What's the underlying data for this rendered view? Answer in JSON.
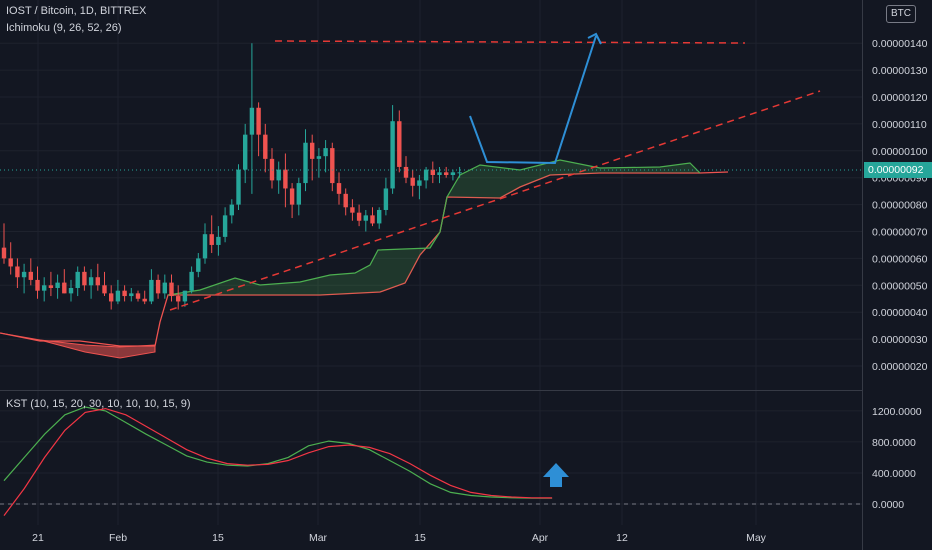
{
  "header": {
    "title": "IOST / Bitcoin, 1D, BITTREX",
    "indicator": "Ichimoku (9, 26, 52, 26)",
    "kst_label": "KST (10, 15, 20, 30, 10, 10, 10, 15, 9)",
    "currency_badge": "BTC",
    "last_price": "0.00000092"
  },
  "colors": {
    "background": "#131722",
    "up": "#26a69a",
    "down": "#ef5350",
    "kst": "#4caf50",
    "signal": "#f23645",
    "drawing_red": "#e53935",
    "drawing_blue": "#2e8fd6"
  },
  "chart_data": [
    {
      "type": "candlestick",
      "title": "IOST / Bitcoin, 1D, BITTREX",
      "ylim": [
        1e-07,
        1.5e-07
      ],
      "y_ticks": [
        "0.00000020",
        "0.00000030",
        "0.00000040",
        "0.00000050",
        "0.00000060",
        "0.00000070",
        "0.00000080",
        "0.00000090",
        "0.00000100",
        "0.00000110",
        "0.00000120",
        "0.00000130",
        "0.00000140"
      ],
      "x_ticks": [
        "21",
        "Feb",
        "15",
        "Mar",
        "15",
        "Apr",
        "12",
        "May"
      ],
      "ohlc": [
        [
          64,
          73,
          58,
          60
        ],
        [
          60,
          66,
          54,
          57
        ],
        [
          57,
          60,
          49,
          53
        ],
        [
          53,
          58,
          47,
          55
        ],
        [
          55,
          60,
          50,
          52
        ],
        [
          52,
          57,
          45,
          48
        ],
        [
          48,
          53,
          44,
          50
        ],
        [
          50,
          55,
          46,
          49
        ],
        [
          49,
          54,
          45,
          51
        ],
        [
          51,
          56,
          47,
          47
        ],
        [
          47,
          52,
          44,
          49
        ],
        [
          49,
          57,
          46,
          55
        ],
        [
          55,
          57,
          48,
          50
        ],
        [
          50,
          56,
          45,
          53
        ],
        [
          53,
          58,
          48,
          50
        ],
        [
          50,
          55,
          46,
          47
        ],
        [
          47,
          50,
          41,
          44
        ],
        [
          44,
          52,
          43,
          48
        ],
        [
          48,
          50,
          44,
          46
        ],
        [
          46,
          49,
          44,
          47
        ],
        [
          47,
          48,
          44,
          45
        ],
        [
          45,
          48,
          43,
          44
        ],
        [
          44,
          56,
          43,
          52
        ],
        [
          52,
          54,
          45,
          47
        ],
        [
          47,
          54,
          45,
          51
        ],
        [
          51,
          54,
          44,
          46
        ],
        [
          46,
          50,
          41,
          44
        ],
        [
          44,
          48,
          42,
          48
        ],
        [
          48,
          57,
          47,
          55
        ],
        [
          55,
          62,
          53,
          60
        ],
        [
          60,
          73,
          58,
          69
        ],
        [
          69,
          76,
          62,
          65
        ],
        [
          65,
          72,
          61,
          68
        ],
        [
          68,
          79,
          66,
          76
        ],
        [
          76,
          82,
          73,
          80
        ],
        [
          80,
          95,
          78,
          93
        ],
        [
          93,
          110,
          88,
          106
        ],
        [
          106,
          140,
          84,
          116
        ],
        [
          116,
          118,
          98,
          106
        ],
        [
          106,
          110,
          92,
          97
        ],
        [
          97,
          101,
          86,
          89
        ],
        [
          89,
          96,
          84,
          93
        ],
        [
          93,
          99,
          79,
          86
        ],
        [
          86,
          88,
          75,
          80
        ],
        [
          80,
          90,
          76,
          88
        ],
        [
          88,
          108,
          85,
          103
        ],
        [
          103,
          106,
          89,
          97
        ],
        [
          97,
          101,
          90,
          98
        ],
        [
          98,
          104,
          92,
          101
        ],
        [
          101,
          103,
          85,
          88
        ],
        [
          88,
          92,
          80,
          84
        ],
        [
          84,
          86,
          76,
          79
        ],
        [
          79,
          82,
          74,
          77
        ],
        [
          77,
          80,
          72,
          74
        ],
        [
          74,
          78,
          70,
          76
        ],
        [
          76,
          79,
          72,
          73
        ],
        [
          73,
          79,
          71,
          78
        ],
        [
          78,
          90,
          76,
          86
        ],
        [
          86,
          117,
          84,
          111
        ],
        [
          111,
          115,
          92,
          94
        ],
        [
          94,
          98,
          88,
          90
        ],
        [
          90,
          93,
          83,
          87
        ],
        [
          87,
          91,
          82,
          89
        ],
        [
          89,
          94,
          86,
          93
        ],
        [
          93,
          96,
          88,
          91
        ],
        [
          91,
          94,
          88,
          92
        ],
        [
          92,
          94,
          90,
          91
        ],
        [
          91,
          93,
          89,
          92
        ],
        [
          92,
          94,
          90,
          92
        ]
      ]
    },
    {
      "type": "line",
      "title": "KST (10, 15, 20, 30, 10, 10, 10, 15, 9)",
      "ylim": [
        -200,
        1400
      ],
      "y_ticks": [
        "0.0000",
        "400.0000",
        "800.0000",
        "1200.0000"
      ],
      "series": [
        {
          "name": "KST",
          "values": [
            300,
            600,
            900,
            1150,
            1250,
            1200,
            1050,
            900,
            760,
            620,
            540,
            500,
            490,
            520,
            600,
            750,
            810,
            780,
            700,
            560,
            420,
            260,
            150,
            110,
            90,
            80,
            75,
            75
          ]
        },
        {
          "name": "Signal",
          "values": [
            -150,
            200,
            600,
            950,
            1180,
            1230,
            1150,
            1000,
            850,
            700,
            590,
            520,
            500,
            510,
            560,
            660,
            740,
            760,
            730,
            650,
            520,
            370,
            240,
            150,
            110,
            90,
            80,
            78
          ]
        }
      ]
    }
  ]
}
